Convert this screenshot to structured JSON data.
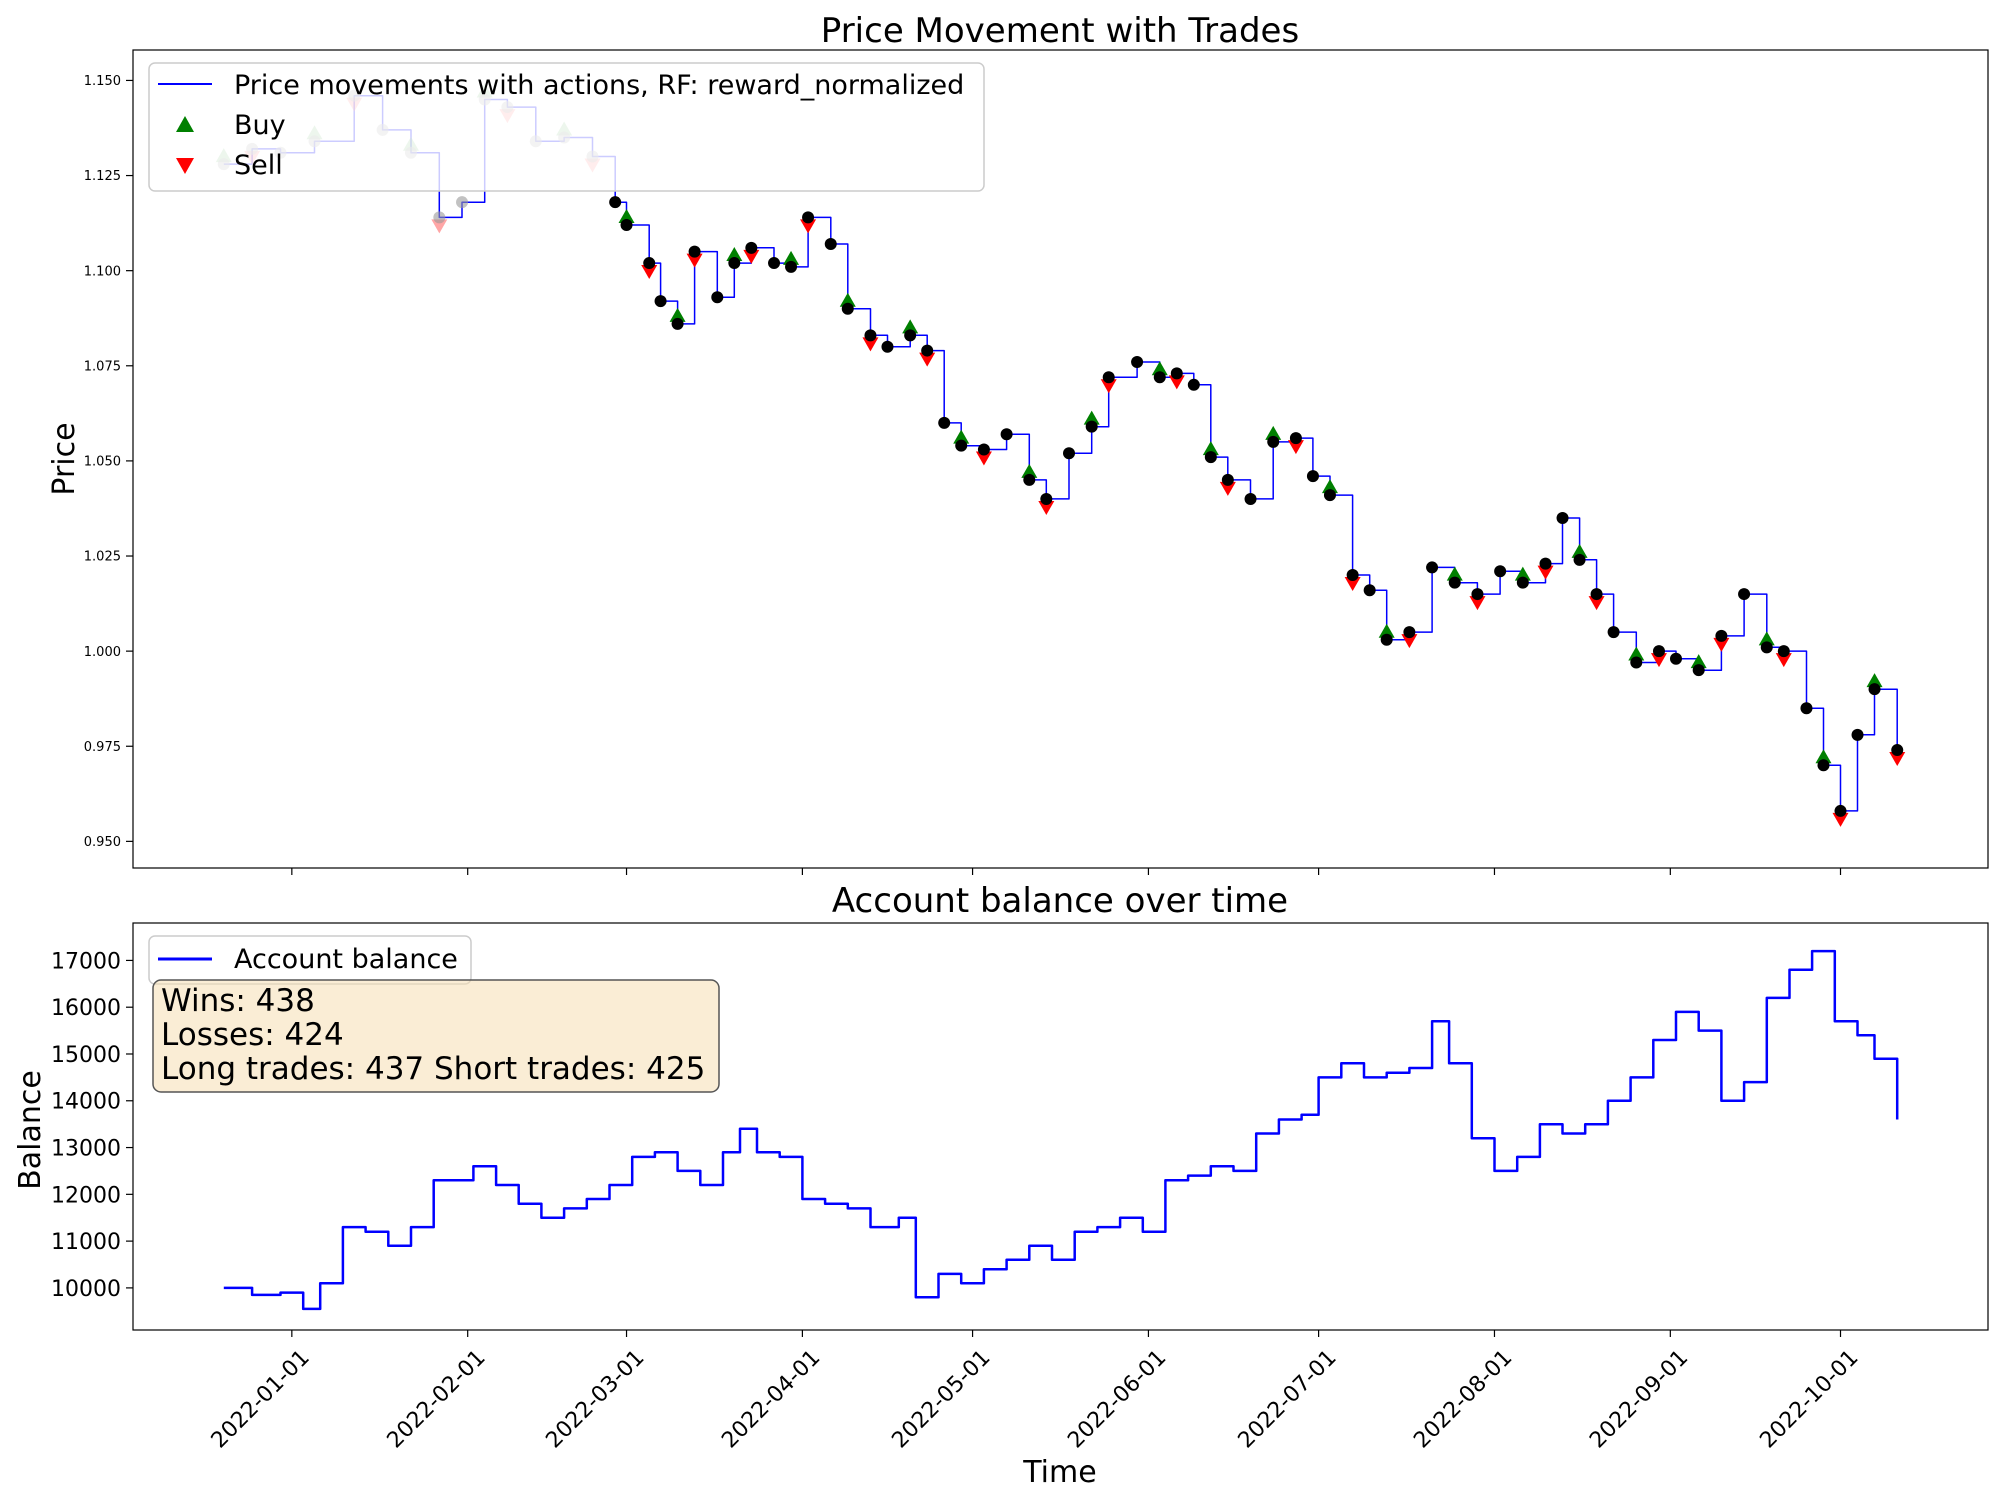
{
  "chart_data": [
    {
      "type": "line",
      "title": "Price Movement with Trades",
      "xlabel": "",
      "ylabel": "Price",
      "ylim": [
        0.943,
        1.158
      ],
      "yticks": [
        "0.950",
        "0.975",
        "1.000",
        "1.025",
        "1.050",
        "1.075",
        "1.100",
        "1.125",
        "1.150"
      ],
      "xrange": [
        "2021-12-04",
        "2022-10-27"
      ],
      "grid": false,
      "legend_position": "upper-left",
      "legend": [
        {
          "label": "Price movements with actions, RF: reward_normalized",
          "kind": "line",
          "color": "#0000ff"
        },
        {
          "label": "Buy",
          "kind": "triangle-up",
          "color": "#008000"
        },
        {
          "label": "Sell",
          "kind": "triangle-down",
          "color": "#ff0000"
        }
      ],
      "series": [
        {
          "name": "Price movements with actions, RF: reward_normalized",
          "color": "#0000ff",
          "x": [
            "2021-12-20",
            "2021-12-25",
            "2021-12-30",
            "2022-01-05",
            "2022-01-12",
            "2022-01-17",
            "2022-01-22",
            "2022-01-27",
            "2022-01-31",
            "2022-02-04",
            "2022-02-08",
            "2022-02-13",
            "2022-02-18",
            "2022-02-23",
            "2022-02-27",
            "2022-03-01",
            "2022-03-05",
            "2022-03-07",
            "2022-03-10",
            "2022-03-13",
            "2022-03-17",
            "2022-03-20",
            "2022-03-23",
            "2022-03-27",
            "2022-03-30",
            "2022-04-02",
            "2022-04-06",
            "2022-04-09",
            "2022-04-13",
            "2022-04-16",
            "2022-04-20",
            "2022-04-23",
            "2022-04-26",
            "2022-04-29",
            "2022-05-03",
            "2022-05-07",
            "2022-05-11",
            "2022-05-14",
            "2022-05-18",
            "2022-05-22",
            "2022-05-25",
            "2022-05-30",
            "2022-06-03",
            "2022-06-06",
            "2022-06-09",
            "2022-06-12",
            "2022-06-15",
            "2022-06-19",
            "2022-06-23",
            "2022-06-27",
            "2022-06-30",
            "2022-07-03",
            "2022-07-07",
            "2022-07-10",
            "2022-07-13",
            "2022-07-17",
            "2022-07-21",
            "2022-07-25",
            "2022-07-29",
            "2022-08-02",
            "2022-08-06",
            "2022-08-10",
            "2022-08-13",
            "2022-08-16",
            "2022-08-19",
            "2022-08-22",
            "2022-08-26",
            "2022-08-30",
            "2022-09-02",
            "2022-09-06",
            "2022-09-10",
            "2022-09-14",
            "2022-09-18",
            "2022-09-21",
            "2022-09-25",
            "2022-09-28",
            "2022-10-01",
            "2022-10-04",
            "2022-10-07",
            "2022-10-11"
          ],
          "values": [
            1.128,
            1.132,
            1.131,
            1.134,
            1.146,
            1.137,
            1.131,
            1.114,
            1.118,
            1.145,
            1.143,
            1.134,
            1.135,
            1.13,
            1.118,
            1.112,
            1.102,
            1.092,
            1.086,
            1.105,
            1.093,
            1.102,
            1.106,
            1.102,
            1.101,
            1.114,
            1.107,
            1.09,
            1.083,
            1.08,
            1.083,
            1.079,
            1.06,
            1.054,
            1.053,
            1.057,
            1.045,
            1.04,
            1.052,
            1.059,
            1.072,
            1.076,
            1.072,
            1.073,
            1.07,
            1.051,
            1.045,
            1.04,
            1.055,
            1.056,
            1.046,
            1.041,
            1.02,
            1.016,
            1.003,
            1.005,
            1.022,
            1.018,
            1.015,
            1.021,
            1.018,
            1.023,
            1.035,
            1.024,
            1.015,
            1.005,
            0.997,
            1.0,
            0.998,
            0.995,
            1.004,
            1.015,
            1.001,
            1.0,
            0.985,
            0.97,
            0.958,
            0.978,
            0.99,
            0.974
          ]
        }
      ]
    },
    {
      "type": "line",
      "title": "Account balance over time",
      "xlabel": "Time",
      "ylabel": "Balance",
      "ylim": [
        9100,
        17800
      ],
      "yticks": [
        "10000",
        "11000",
        "12000",
        "13000",
        "14000",
        "15000",
        "16000",
        "17000"
      ],
      "xrange": [
        "2021-12-04",
        "2022-10-27"
      ],
      "xticks": [
        "2022-01-01",
        "2022-02-01",
        "2022-03-01",
        "2022-04-01",
        "2022-05-01",
        "2022-06-01",
        "2022-07-01",
        "2022-08-01",
        "2022-09-01",
        "2022-10-01"
      ],
      "grid": false,
      "legend_position": "upper-left",
      "legend": [
        {
          "label": "Account balance",
          "kind": "line",
          "color": "#0000ff"
        }
      ],
      "annotations": [
        "Wins: 438",
        "Losses: 424",
        "Long trades: 437 Short trades: 425"
      ],
      "series": [
        {
          "name": "Account balance",
          "color": "#0000ff",
          "x": [
            "2021-12-20",
            "2021-12-25",
            "2021-12-30",
            "2022-01-03",
            "2022-01-06",
            "2022-01-10",
            "2022-01-14",
            "2022-01-18",
            "2022-01-22",
            "2022-01-26",
            "2022-01-29",
            "2022-02-02",
            "2022-02-06",
            "2022-02-10",
            "2022-02-14",
            "2022-02-18",
            "2022-02-22",
            "2022-02-26",
            "2022-03-02",
            "2022-03-06",
            "2022-03-10",
            "2022-03-14",
            "2022-03-18",
            "2022-03-21",
            "2022-03-24",
            "2022-03-28",
            "2022-04-01",
            "2022-04-05",
            "2022-04-09",
            "2022-04-13",
            "2022-04-18",
            "2022-04-21",
            "2022-04-25",
            "2022-04-29",
            "2022-05-03",
            "2022-05-07",
            "2022-05-11",
            "2022-05-15",
            "2022-05-19",
            "2022-05-23",
            "2022-05-27",
            "2022-05-31",
            "2022-06-04",
            "2022-06-08",
            "2022-06-12",
            "2022-06-16",
            "2022-06-20",
            "2022-06-24",
            "2022-06-28",
            "2022-07-01",
            "2022-07-05",
            "2022-07-09",
            "2022-07-13",
            "2022-07-17",
            "2022-07-21",
            "2022-07-24",
            "2022-07-28",
            "2022-08-01",
            "2022-08-05",
            "2022-08-09",
            "2022-08-13",
            "2022-08-17",
            "2022-08-21",
            "2022-08-25",
            "2022-08-29",
            "2022-09-02",
            "2022-09-06",
            "2022-09-10",
            "2022-09-14",
            "2022-09-18",
            "2022-09-22",
            "2022-09-26",
            "2022-09-30",
            "2022-10-04",
            "2022-10-07",
            "2022-10-11"
          ],
          "values": [
            10000,
            9850,
            9900,
            9550,
            10100,
            11300,
            11200,
            10900,
            11300,
            12300,
            12300,
            12600,
            12200,
            11800,
            11500,
            11700,
            11900,
            12200,
            12800,
            12900,
            12500,
            12200,
            12900,
            13400,
            12900,
            12800,
            11900,
            11800,
            11700,
            11300,
            11500,
            9800,
            10300,
            10100,
            10400,
            10600,
            10900,
            10600,
            11200,
            11300,
            11500,
            11200,
            12300,
            12400,
            12600,
            12500,
            13300,
            13600,
            13700,
            14500,
            14800,
            14500,
            14600,
            14700,
            15700,
            14800,
            13200,
            12500,
            12800,
            13500,
            13300,
            13500,
            14000,
            14500,
            15300,
            15900,
            15500,
            14000,
            14400,
            16200,
            16800,
            17200,
            15700,
            15400,
            14900,
            13600
          ]
        }
      ]
    }
  ]
}
